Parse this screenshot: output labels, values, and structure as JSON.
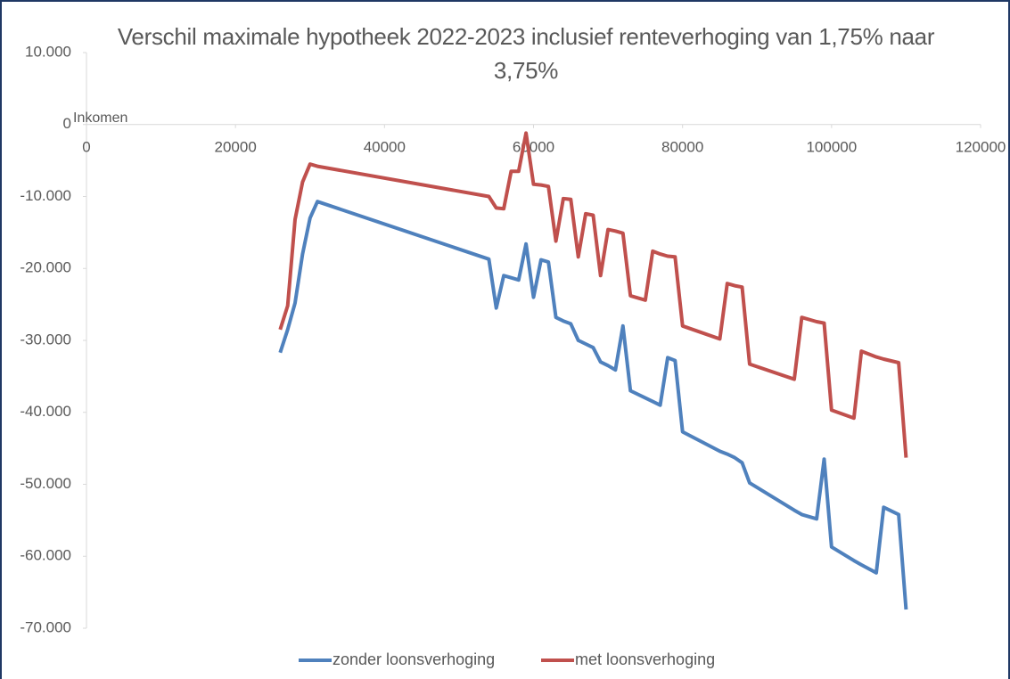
{
  "chart_data": {
    "type": "line",
    "title": "Verschil maximale hypotheek 2022-2023 inclusief renteverhoging van 1,75% naar 3,75%",
    "x_label": "Inkomen",
    "x": [
      26000,
      27000,
      28000,
      29000,
      30000,
      31000,
      54000,
      55000,
      56000,
      57000,
      58000,
      59000,
      60000,
      61000,
      62000,
      63000,
      64000,
      65000,
      66000,
      67000,
      68000,
      69000,
      70000,
      71000,
      72000,
      73000,
      75000,
      76000,
      77000,
      78000,
      79000,
      80000,
      85000,
      86000,
      87000,
      88000,
      89000,
      95000,
      96000,
      98000,
      99000,
      100000,
      103000,
      104000,
      106000,
      107000,
      109000,
      110000
    ],
    "series": [
      {
        "name": "zonder loonsverhoging",
        "color": "#4f81bd",
        "values": [
          -31700,
          -28500,
          -24800,
          -18000,
          -13000,
          -10700,
          -18700,
          -25500,
          -21000,
          -21300,
          -21600,
          -16600,
          -24000,
          -18800,
          -19100,
          -26800,
          -27300,
          -27700,
          -30000,
          -30500,
          -31000,
          -33000,
          -33500,
          -34100,
          -28000,
          -37000,
          -38000,
          -38500,
          -39000,
          -32400,
          -32800,
          -42700,
          -45400,
          -45800,
          -46300,
          -47000,
          -49800,
          -53600,
          -54200,
          -54800,
          -46500,
          -58700,
          -60600,
          -61200,
          -62300,
          -53200,
          -54200,
          -67400
        ]
      },
      {
        "name": "met loonsverhoging",
        "color": "#c0504d",
        "values": [
          -28500,
          -25200,
          -13200,
          -8000,
          -5500,
          -5800,
          -10000,
          -11600,
          -11700,
          -6500,
          -6500,
          -1200,
          -8300,
          -8400,
          -8600,
          -16200,
          -10300,
          -10400,
          -18400,
          -12400,
          -12600,
          -21000,
          -14600,
          -14800,
          -15100,
          -23800,
          -24400,
          -17600,
          -18000,
          -18300,
          -18400,
          -28000,
          -29800,
          -22100,
          -22400,
          -22600,
          -33300,
          -35400,
          -26800,
          -27400,
          -27600,
          -39700,
          -40800,
          -31500,
          -32300,
          -32600,
          -33100,
          -46300
        ]
      }
    ],
    "xlim": [
      0,
      120000
    ],
    "xticks": [
      0,
      20000,
      40000,
      60000,
      80000,
      100000,
      120000
    ],
    "ylim": [
      -70000,
      10000
    ],
    "yticks": [
      {
        "value": 10000,
        "label": "10.000"
      },
      0,
      {
        "value": -10000,
        "label": "-10.000"
      },
      {
        "value": -20000,
        "label": "-20.000"
      },
      {
        "value": -30000,
        "label": "-30.000"
      },
      {
        "value": -40000,
        "label": "-40.000"
      },
      {
        "value": -50000,
        "label": "-50.000"
      },
      {
        "value": -60000,
        "label": "-60.000"
      },
      {
        "value": -70000,
        "label": "-70.000"
      }
    ],
    "legend": "bottom"
  }
}
